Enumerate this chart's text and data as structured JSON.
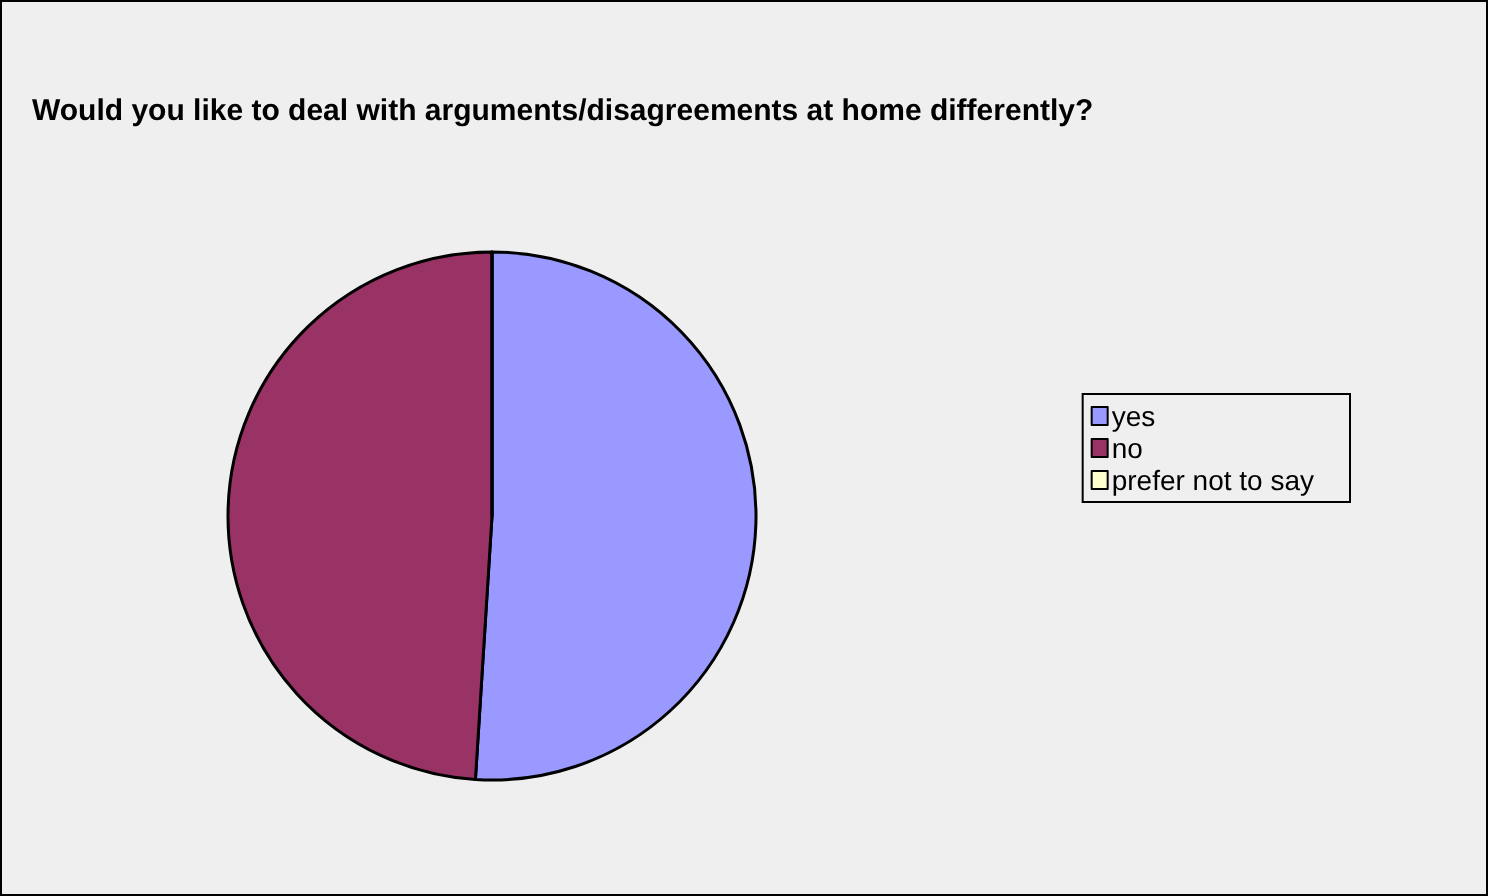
{
  "chart_data": {
    "type": "pie",
    "title": "Would you like to deal with arguments/disagreements at home differently?",
    "categories": [
      "yes",
      "no",
      "prefer not to say"
    ],
    "values": [
      51,
      49,
      0
    ],
    "colors": [
      "#9999ff",
      "#993366",
      "#ffffcc"
    ],
    "legend": "right"
  }
}
